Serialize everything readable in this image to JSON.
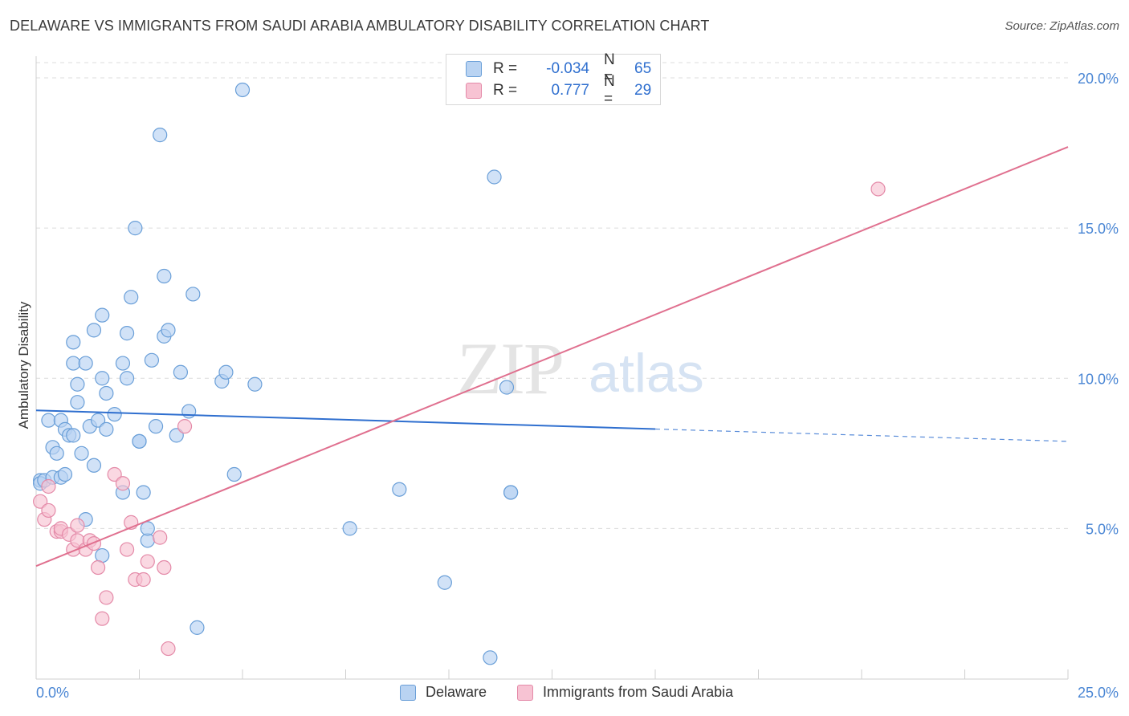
{
  "title": "DELAWARE VS IMMIGRANTS FROM SAUDI ARABIA AMBULATORY DISABILITY CORRELATION CHART",
  "source": "Source: ZipAtlas.com",
  "watermark": {
    "zip": "ZIP",
    "atlas": "atlas"
  },
  "colors": {
    "delaware_fill": "#b9d3f2",
    "delaware_stroke": "#6a9fd8",
    "delaware_line": "#2f6fcf",
    "saudi_fill": "#f7c3d3",
    "saudi_stroke": "#e48aa8",
    "saudi_line": "#e0708f",
    "tick_label": "#4a86d4",
    "grid": "#dcdcdc"
  },
  "legend": {
    "rows": [
      {
        "r_label": "R =",
        "r_value": "-0.034",
        "n_label": "N =",
        "n_value": "65"
      },
      {
        "r_label": "R =",
        "r_value": "0.777",
        "n_label": "N =",
        "n_value": "29"
      }
    ]
  },
  "bottom_legend": {
    "delaware": "Delaware",
    "saudi": "Immigrants from Saudi Arabia"
  },
  "chart_data": {
    "type": "scatter",
    "title": "DELAWARE VS IMMIGRANTS FROM SAUDI ARABIA AMBULATORY DISABILITY CORRELATION CHART",
    "xlabel": "",
    "ylabel": "Ambulatory Disability",
    "xlim": [
      0,
      25
    ],
    "ylim": [
      0,
      20.5
    ],
    "x_tick_labels": [
      "0.0%",
      "25.0%"
    ],
    "y_ticks": [
      5,
      10,
      15,
      20
    ],
    "y_tick_labels": [
      "5.0%",
      "10.0%",
      "15.0%",
      "20.0%"
    ],
    "grid": true,
    "legend_position": "top-center",
    "series": [
      {
        "name": "Delaware",
        "r": -0.034,
        "n": 65,
        "trend": {
          "x0": 0,
          "y0": 8.93,
          "x1": 15.0,
          "y1": 8.31,
          "dashed_to_x": 25.0,
          "dashed_to_y": 7.9
        },
        "points": [
          [
            0.1,
            6.6
          ],
          [
            0.1,
            6.5
          ],
          [
            0.2,
            6.6
          ],
          [
            0.3,
            8.6
          ],
          [
            0.4,
            6.7
          ],
          [
            0.4,
            7.7
          ],
          [
            0.5,
            7.5
          ],
          [
            0.6,
            6.7
          ],
          [
            0.6,
            8.6
          ],
          [
            0.7,
            8.3
          ],
          [
            0.7,
            6.8
          ],
          [
            0.8,
            8.1
          ],
          [
            0.9,
            8.1
          ],
          [
            0.9,
            11.2
          ],
          [
            0.9,
            10.5
          ],
          [
            1.0,
            9.8
          ],
          [
            1.0,
            9.2
          ],
          [
            1.1,
            7.5
          ],
          [
            1.2,
            5.3
          ],
          [
            1.2,
            10.5
          ],
          [
            1.3,
            8.4
          ],
          [
            1.4,
            7.1
          ],
          [
            1.4,
            11.6
          ],
          [
            1.5,
            8.6
          ],
          [
            1.6,
            12.1
          ],
          [
            1.6,
            10.0
          ],
          [
            1.6,
            4.1
          ],
          [
            1.7,
            8.3
          ],
          [
            1.7,
            9.5
          ],
          [
            1.9,
            8.8
          ],
          [
            2.1,
            10.5
          ],
          [
            2.1,
            6.2
          ],
          [
            2.2,
            11.5
          ],
          [
            2.2,
            10.0
          ],
          [
            2.3,
            12.7
          ],
          [
            2.4,
            15.0
          ],
          [
            2.5,
            7.9
          ],
          [
            2.5,
            7.9
          ],
          [
            2.6,
            6.2
          ],
          [
            2.7,
            4.6
          ],
          [
            2.7,
            5.0
          ],
          [
            2.8,
            10.6
          ],
          [
            2.9,
            8.4
          ],
          [
            3.0,
            18.1
          ],
          [
            3.1,
            13.4
          ],
          [
            3.1,
            11.4
          ],
          [
            3.2,
            11.6
          ],
          [
            3.4,
            8.1
          ],
          [
            3.5,
            10.2
          ],
          [
            3.7,
            8.9
          ],
          [
            3.8,
            12.8
          ],
          [
            3.9,
            1.7
          ],
          [
            4.5,
            9.9
          ],
          [
            4.6,
            10.2
          ],
          [
            4.8,
            6.8
          ],
          [
            5.0,
            19.6
          ],
          [
            5.3,
            9.8
          ],
          [
            7.6,
            5.0
          ],
          [
            8.8,
            6.3
          ],
          [
            9.9,
            3.2
          ],
          [
            11.0,
            0.7
          ],
          [
            11.1,
            16.7
          ],
          [
            11.4,
            9.7
          ],
          [
            11.5,
            6.2
          ],
          [
            11.5,
            6.2
          ]
        ]
      },
      {
        "name": "Immigrants from Saudi Arabia",
        "r": 0.777,
        "n": 29,
        "trend": {
          "x0": 0,
          "y0": 3.75,
          "x1": 25.0,
          "y1": 17.7
        },
        "points": [
          [
            0.1,
            5.9
          ],
          [
            0.2,
            5.3
          ],
          [
            0.3,
            5.6
          ],
          [
            0.3,
            6.4
          ],
          [
            0.5,
            4.9
          ],
          [
            0.6,
            4.9
          ],
          [
            0.6,
            5.0
          ],
          [
            0.8,
            4.8
          ],
          [
            0.9,
            4.3
          ],
          [
            1.0,
            4.6
          ],
          [
            1.0,
            5.1
          ],
          [
            1.2,
            4.3
          ],
          [
            1.3,
            4.6
          ],
          [
            1.4,
            4.5
          ],
          [
            1.5,
            3.7
          ],
          [
            1.6,
            2.0
          ],
          [
            1.7,
            2.7
          ],
          [
            1.9,
            6.8
          ],
          [
            2.1,
            6.5
          ],
          [
            2.2,
            4.3
          ],
          [
            2.3,
            5.2
          ],
          [
            2.4,
            3.3
          ],
          [
            2.6,
            3.3
          ],
          [
            2.7,
            3.9
          ],
          [
            3.0,
            4.7
          ],
          [
            3.1,
            3.7
          ],
          [
            3.2,
            1.0
          ],
          [
            3.6,
            8.4
          ],
          [
            20.4,
            16.3
          ]
        ]
      }
    ]
  }
}
